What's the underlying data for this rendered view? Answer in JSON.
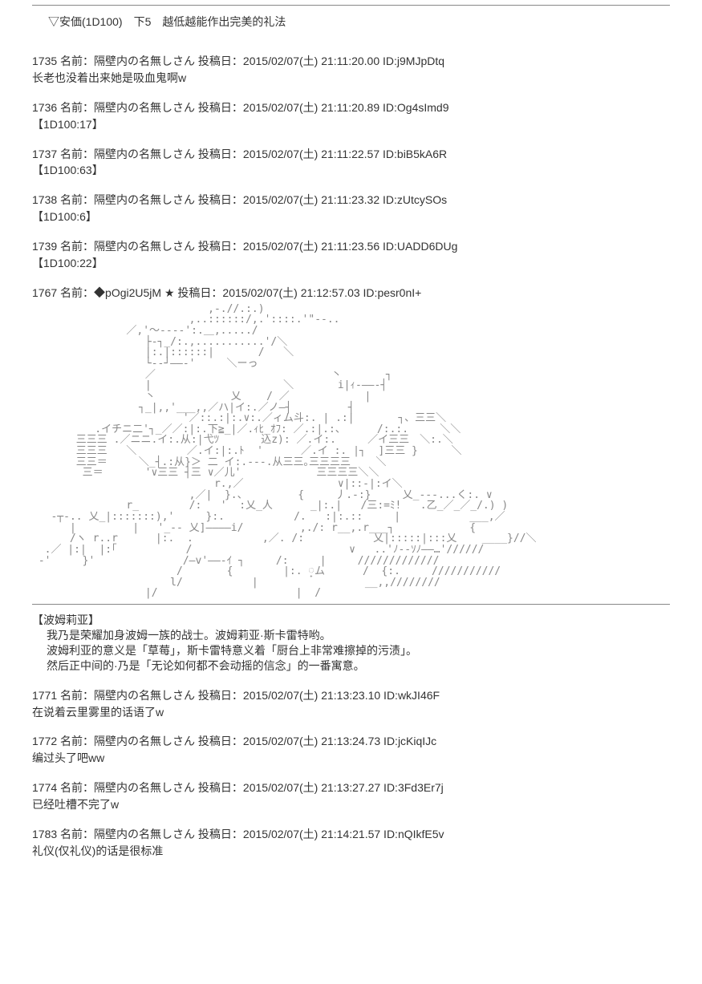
{
  "prompt": "▽安価(1D100)　下5　越低越能作出完美的礼法",
  "posts": [
    {
      "num": "1735",
      "name": "隔壁内の名無しさん",
      "date": "2015/02/07(土) 21:11:20.00",
      "id": "j9MJpDtq",
      "body": "长老也没着出来她是吸血鬼啊w"
    },
    {
      "num": "1736",
      "name": "隔壁内の名無しさん",
      "date": "2015/02/07(土) 21:11:20.89",
      "id": "Og4sImd9",
      "body": "【1D100:17】"
    },
    {
      "num": "1737",
      "name": "隔壁内の名無しさん",
      "date": "2015/02/07(土) 21:11:22.57",
      "id": "biB5kA6R",
      "body": "【1D100:63】"
    },
    {
      "num": "1738",
      "name": "隔壁内の名無しさん",
      "date": "2015/02/07(土) 21:11:23.32",
      "id": "zUtcySOs",
      "body": "【1D100:6】"
    },
    {
      "num": "1739",
      "name": "隔壁内の名無しさん",
      "date": "2015/02/07(土) 21:11:23.56",
      "id": "UADD6DUg",
      "body": "【1D100:22】"
    }
  ],
  "authorPost": {
    "num": "1767",
    "name": "◆pOgi2U5jM ★",
    "date": "2015/02/07(土) 21:12:57.03",
    "id": "pesr0nI+",
    "ascii": "                            ,-.//.:.)\n                         ,..::::::/,.'::::.'\"‐-..\n               ／,'～‐---':.＿,...../\n                  ├‐┐_/:.,...........'/＼\n                  |:.|::::::|       /   ＼\n                  └‐‐┘――-'　　　＼ーっ\n                  ／                            丶       ┐\n                  |                     ＼       i|ｨ-――‐┤\n                  丶            乂    / ／　　　       |\n                 ┐_|,,'___,,／ハ|イ:.／ノ―┤         ┤\n                        '／::.:|:.∨:.／ィム斗:. | .:|       ┐、三三＼\n          .イチニ二'┐_／／:|:.下≧_|／.ｨﾋ_ｵﾌ: ／.:|.:、     /:.:.     ＼＼\n       三三三 .／ニニ.イ:.从:|弋ﾂ　     込z): ／.イ:.     ／イ三三　＼:.＼\n       三三三   ＼        ／.イ:|:.ﾄ  '      ／.イ :. |┐  ]三三 }　　  ＼\n       三三＝　　　＼_┤.:从}＞ 二 イ:.---.从三三｡三三三三    ＼\n        三＝　　　　'∨三三 ┤三 ∨／儿'            三三三三＼＼\n                             r.,／               ∨|::‐|:イ＼\n                         ,／|  }.、        {     丿.-:}     乂_---...く:. ∨\n               r_        /:   '  :乂_人      _|:.|   /三:=ﾐ!   .乙_／_／_/.) )\n   ‐┬‐.. 乂_|:::::::),'     }:.           /.   :|:.::     |           ___,／\n      |         |   '_-- 乂]――――i/         ,./: r__,.r___┐            {\n      /ヽ r..r      |:.  .           ,／. /:           乂|:::::|:::乂    ____}//＼\n  .／ |:|  |:｢           /                         ∨   ..'ﾉ--ｿﾉ――…'//////\n ‐'     }'              /―v'――-ｲ ┐     /:     |     /////////////\n                       /       {        |:. ្ム      /  {:.     ///////////\n                      l/           |                 __,,////////\n                  |/                      |  /",
    "speaker": "【波姆莉亚】",
    "lines": [
      "我乃是荣耀加身波姆一族的战士。波姆莉亚·斯卡雷特哟。",
      "波姆利亚的意义是「草莓」，斯卡雷特意义着「厨台上非常难擦掉的污渍」。",
      "然后正中间的·乃是「无论如何都不会动摇的信念」的一番寓意。"
    ]
  },
  "replies": [
    {
      "num": "1771",
      "name": "隔壁内の名無しさん",
      "date": "2015/02/07(土) 21:13:23.10",
      "id": "wkJI46F",
      "body": "在说着云里雾里的话语了w"
    },
    {
      "num": "1772",
      "name": "隔壁内の名無しさん",
      "date": "2015/02/07(土) 21:13:24.73",
      "id": "jcKiqIJc",
      "body": "编过头了吧ww"
    },
    {
      "num": "1774",
      "name": "隔壁内の名無しさん",
      "date": "2015/02/07(土) 21:13:27.27",
      "id": "3Fd3Er7j",
      "body": "已经吐槽不完了w"
    },
    {
      "num": "1783",
      "name": "隔壁内の名無しさん",
      "date": "2015/02/07(土) 21:14:21.57",
      "id": "nQIkfE5v",
      "body": "礼仪(仅礼仪)的话是很标准"
    }
  ],
  "labels": {
    "name": "名前：",
    "date": "投稿日：",
    "id": "ID:"
  }
}
